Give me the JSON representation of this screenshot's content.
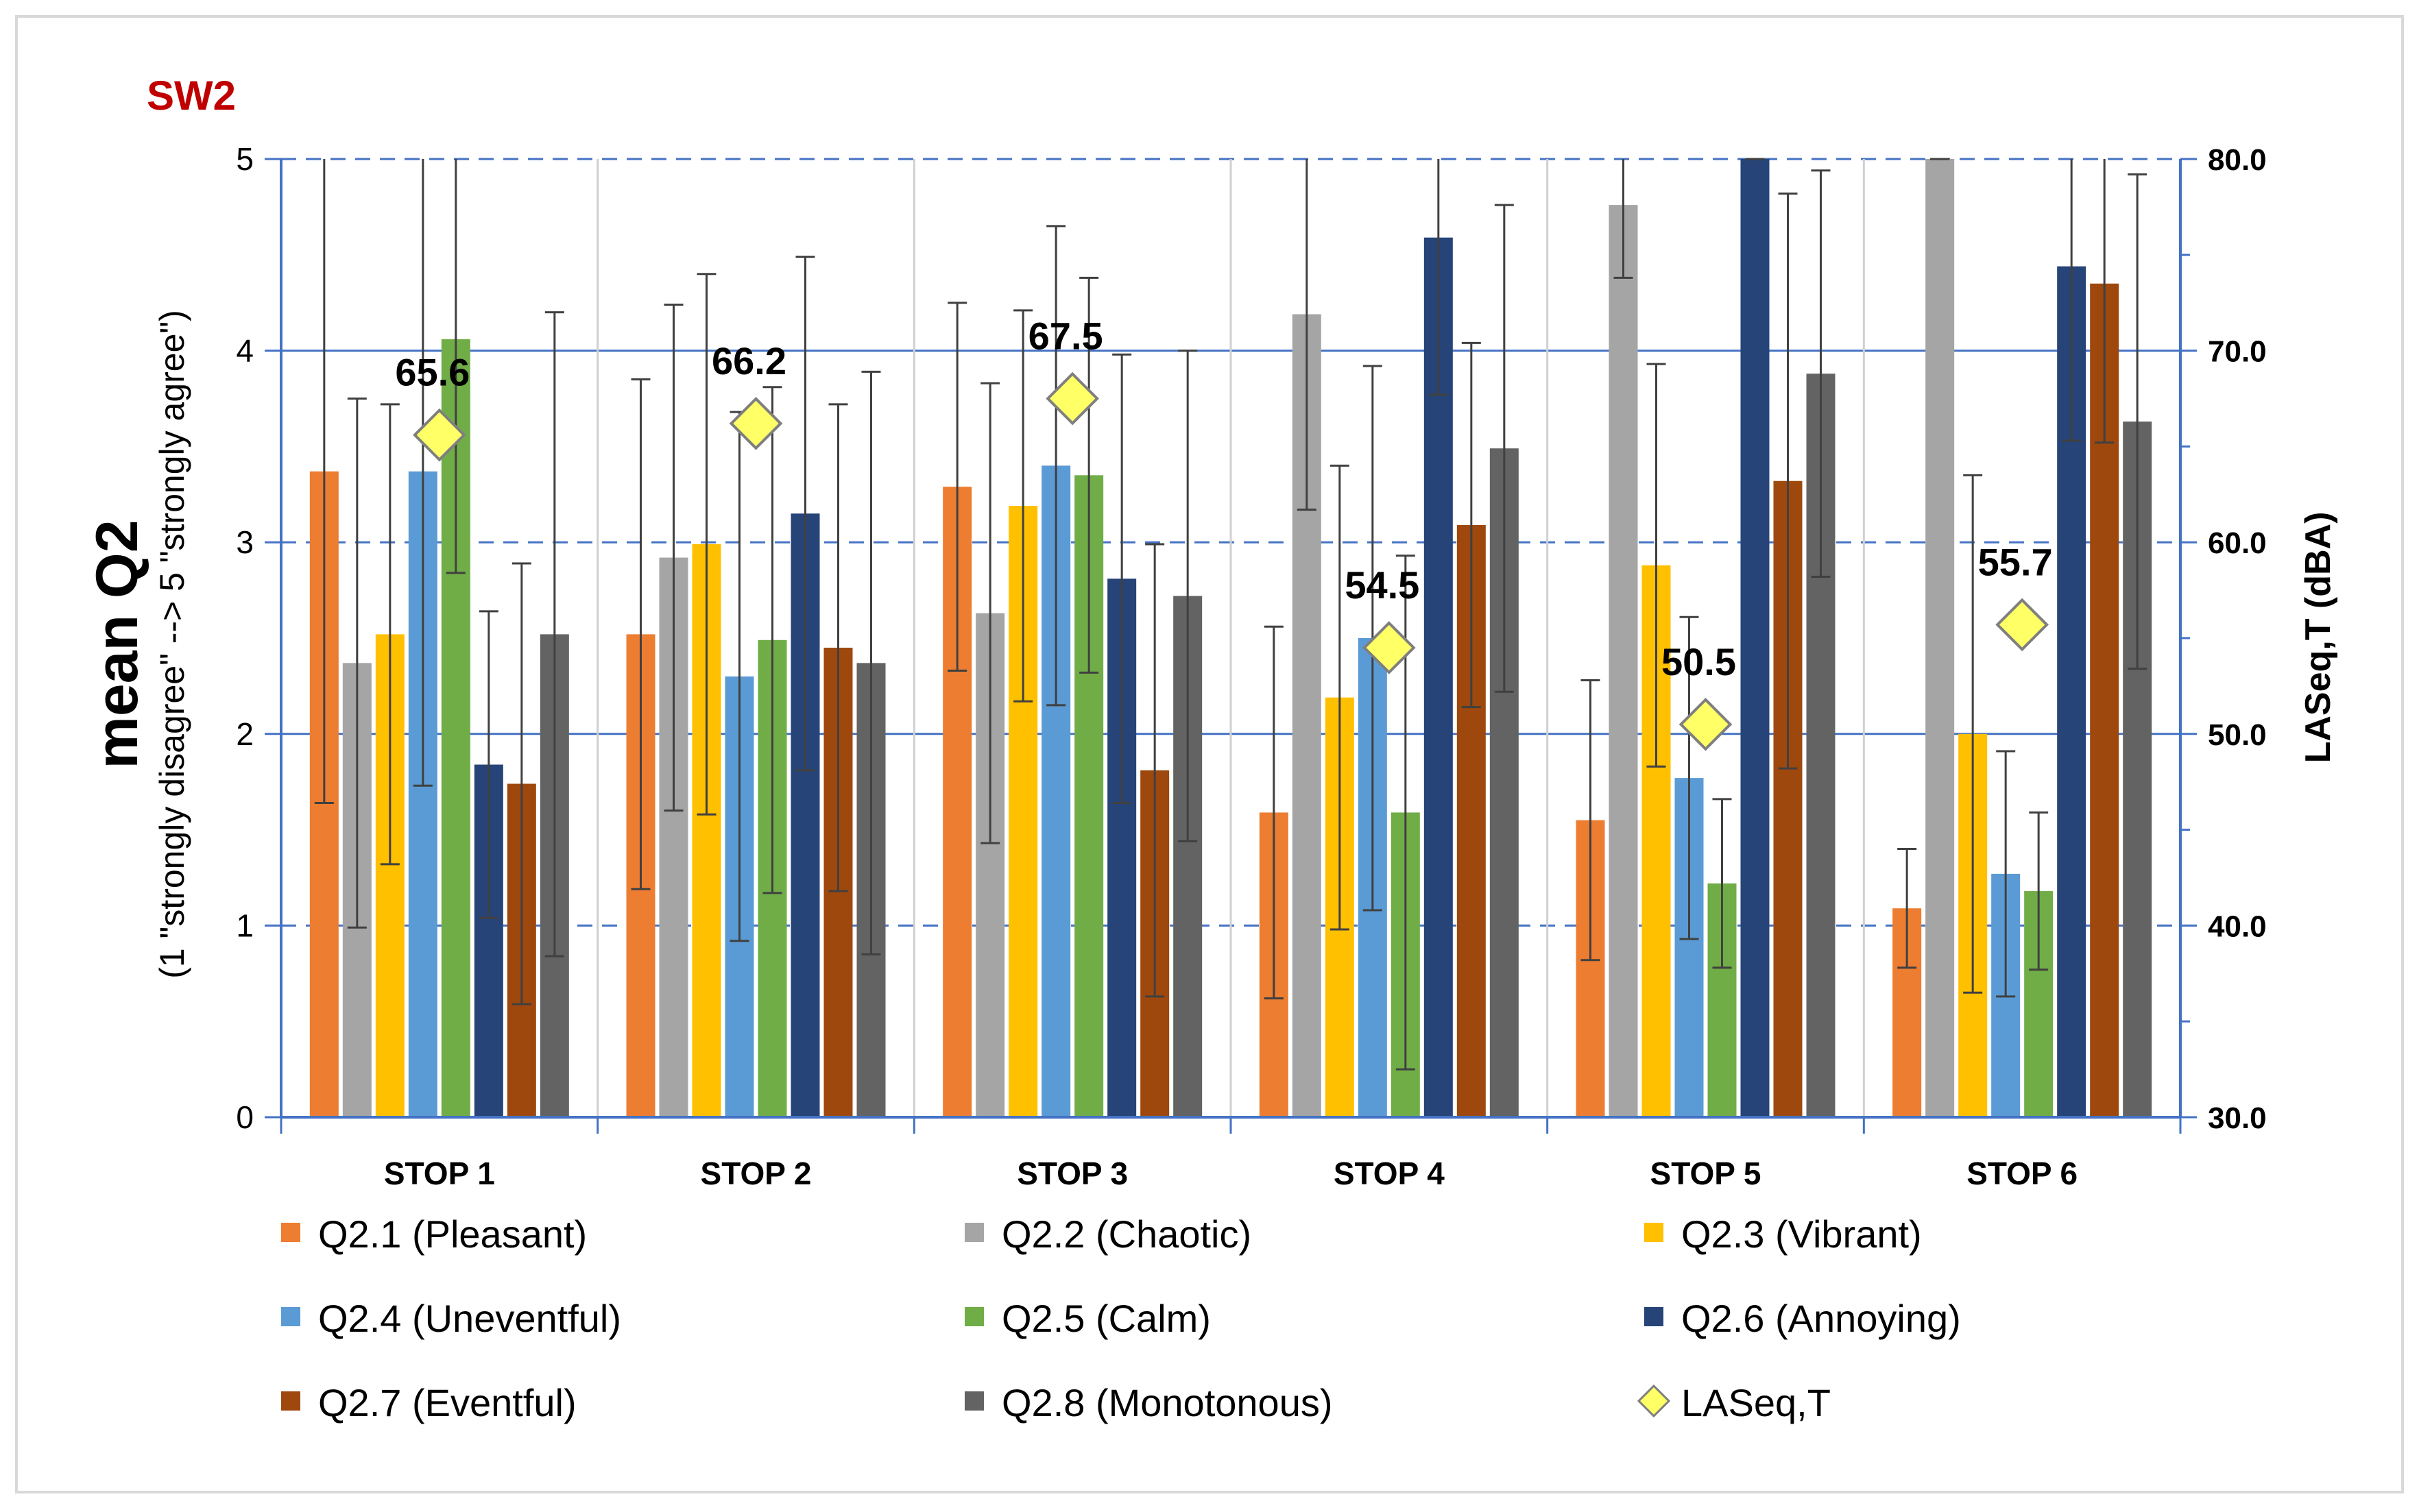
{
  "chart_data": {
    "type": "bar",
    "title": "SW2",
    "ylabel": "mean Q2",
    "ylabel_sub": "(1 \"strongly disagree\" --> 5 \"strongly agree\")",
    "y2label": "LASeq,T (dBA)",
    "ylim": [
      0,
      5
    ],
    "y2lim": [
      30,
      80
    ],
    "yticks": [
      "0",
      "1",
      "2",
      "3",
      "4",
      "5"
    ],
    "y2ticks": [
      "30.0",
      "40.0",
      "50.0",
      "60.0",
      "70.0",
      "80.0"
    ],
    "grid": true,
    "legend": "bottom",
    "categories": [
      "STOP 1",
      "STOP 2",
      "STOP 3",
      "STOP 4",
      "STOP 5",
      "STOP 6"
    ],
    "series": [
      {
        "name": "Q2.1 (Pleasant)",
        "color": "#ED7D31",
        "values": [
          3.37,
          2.52,
          3.29,
          1.59,
          1.55,
          1.09
        ],
        "error": [
          1.73,
          1.33,
          0.96,
          0.97,
          0.73,
          0.31
        ]
      },
      {
        "name": "Q2.2 (Chaotic)",
        "color": "#A5A5A5",
        "values": [
          2.37,
          2.92,
          2.63,
          4.19,
          4.76,
          5.0
        ],
        "error": [
          1.38,
          1.32,
          1.2,
          1.02,
          0.38,
          0.0
        ]
      },
      {
        "name": "Q2.3 (Vibrant)",
        "color": "#FFC000",
        "values": [
          2.52,
          2.99,
          3.19,
          2.19,
          2.88,
          2.0
        ],
        "error": [
          1.2,
          1.41,
          1.02,
          1.21,
          1.05,
          1.35
        ]
      },
      {
        "name": "Q2.4 (Uneventful)",
        "color": "#5B9BD5",
        "values": [
          3.37,
          2.3,
          3.4,
          2.5,
          1.77,
          1.27
        ],
        "error": [
          1.64,
          1.38,
          1.25,
          1.42,
          0.84,
          0.64
        ]
      },
      {
        "name": "Q2.5 (Calm)",
        "color": "#70AD47",
        "values": [
          4.06,
          2.49,
          3.35,
          1.59,
          1.22,
          1.18
        ],
        "error": [
          1.22,
          1.32,
          1.03,
          1.34,
          0.44,
          0.41
        ]
      },
      {
        "name": "Q2.6 (Annoying)",
        "color": "#264478",
        "values": [
          1.84,
          3.15,
          2.81,
          4.59,
          5.0,
          4.44
        ],
        "error": [
          0.8,
          1.34,
          1.17,
          0.82,
          0.0,
          0.91
        ]
      },
      {
        "name": "Q2.7 (Eventful)",
        "color": "#9E480E",
        "values": [
          1.74,
          2.45,
          1.81,
          3.09,
          3.32,
          4.35
        ],
        "error": [
          1.15,
          1.27,
          1.18,
          0.95,
          1.5,
          0.83
        ]
      },
      {
        "name": "Q2.8 (Monotonous)",
        "color": "#636363",
        "values": [
          2.52,
          2.37,
          2.72,
          3.49,
          3.88,
          3.63
        ],
        "error": [
          1.68,
          1.52,
          1.28,
          1.27,
          1.06,
          1.29
        ]
      }
    ],
    "line_series": {
      "name": "LASeq,T",
      "axis": "secondary",
      "marker": "diamond",
      "color": "#FFFF66",
      "values": [
        65.6,
        66.2,
        67.5,
        54.5,
        50.5,
        55.7
      ],
      "labels": [
        "65.6",
        "66.2",
        "67.5",
        "54.5",
        "50.5",
        "55.7"
      ]
    }
  }
}
